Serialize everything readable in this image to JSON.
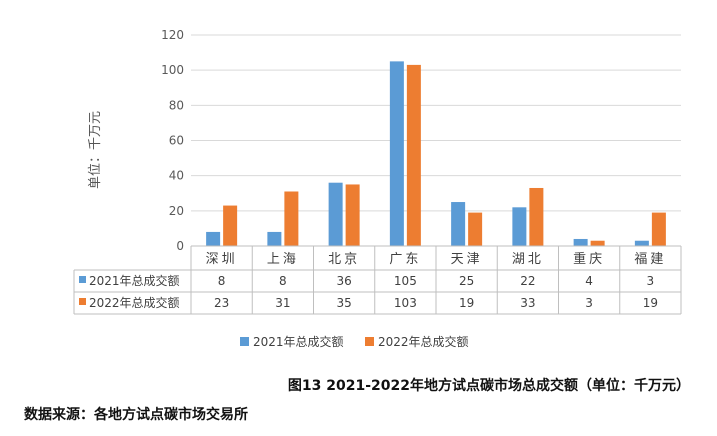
{
  "chart_data": {
    "type": "bar",
    "ylabel": "单位：千万元",
    "ylim": [
      0,
      120
    ],
    "yticks": [
      0,
      20,
      40,
      60,
      80,
      100,
      120
    ],
    "grid": true,
    "categories": [
      "深圳",
      "上海",
      "北京",
      "广东",
      "天津",
      "湖北",
      "重庆",
      "福建"
    ],
    "series": [
      {
        "name": "2021年总成交额",
        "color": "#5b9bd5",
        "values": [
          8,
          8,
          36,
          105,
          25,
          22,
          4,
          3
        ]
      },
      {
        "name": "2022年总成交额",
        "color": "#ed7d31",
        "values": [
          23,
          31,
          35,
          103,
          19,
          33,
          3,
          19
        ]
      }
    ],
    "data_table": true,
    "legend": "bottom"
  },
  "caption": "图13   2021-2022年地方试点碳市场总成交额（单位：千万元）",
  "source": "数据来源：各地方试点碳市场交易所"
}
